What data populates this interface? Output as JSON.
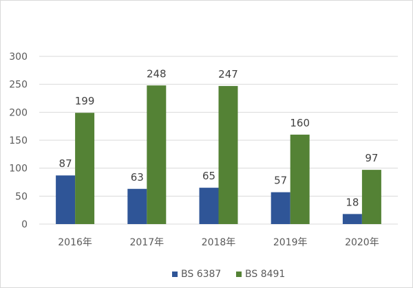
{
  "chart_data": {
    "type": "bar",
    "title": "",
    "xlabel": "",
    "ylabel": "",
    "categories": [
      "2016年",
      "2017年",
      "2018年",
      "2019年",
      "2020年"
    ],
    "series": [
      {
        "name": "BS 6387",
        "color": "#2f5597",
        "values": [
          87,
          63,
          65,
          57,
          18
        ]
      },
      {
        "name": "BS 8491",
        "color": "#548235",
        "values": [
          199,
          248,
          247,
          160,
          97
        ]
      }
    ],
    "ylim": [
      0,
      300
    ],
    "yticks": [
      0,
      50,
      100,
      150,
      200,
      250,
      300
    ],
    "grid": true,
    "legend_position": "bottom-center",
    "gridline_color": "#d9d9d9"
  }
}
